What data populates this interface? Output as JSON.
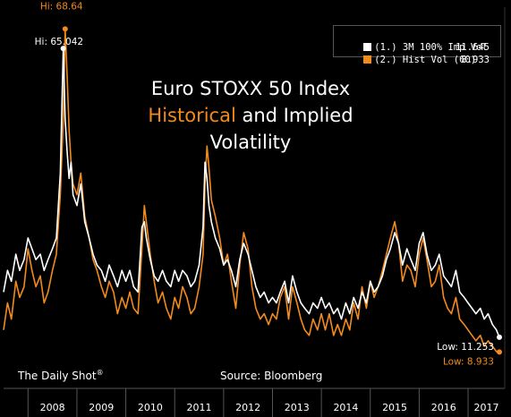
{
  "title": {
    "line1": "Euro STOXX 50 Index",
    "line2_accent": "Historical",
    "line2_rest": " and Implied",
    "line3": "Volatility"
  },
  "legend": {
    "entries": [
      {
        "label": "(1.) 3M 100% Imp Vol",
        "value": "11.645",
        "color": "#ffffff"
      },
      {
        "label": "(2.) Hist Vol (60)",
        "value": "8.933",
        "color": "#f28a1c"
      }
    ]
  },
  "annotations": {
    "hi_hist": "Hi: 68.64",
    "hi_imp": "Hi: 65.042",
    "low_imp": "Low: 11.253",
    "low_hist": "Low: 8.933"
  },
  "footer": {
    "brand": "The Daily Shot",
    "brand_mark": "®",
    "source": "Source: Bloomberg"
  },
  "colors": {
    "background": "#000000",
    "implied": "#ffffff",
    "historical": "#f28a1c",
    "axis": "#555555"
  },
  "chart_data": {
    "type": "line",
    "x_tick_labels": [
      "2008",
      "2009",
      "2010",
      "2011",
      "2012",
      "2013",
      "2014",
      "2015",
      "2016",
      "2017"
    ],
    "xlim": [
      2007.5,
      2017.75
    ],
    "ylim": [
      7,
      72
    ],
    "grid": false,
    "legend_position": "top-right",
    "series": [
      {
        "name": "(1.) 3M 100% Imp Vol",
        "color": "#ffffff",
        "x": [
          2007.5,
          2007.58,
          2007.66,
          2007.75,
          2007.83,
          2007.92,
          2008.0,
          2008.08,
          2008.16,
          2008.25,
          2008.33,
          2008.41,
          2008.5,
          2008.58,
          2008.66,
          2008.72,
          2008.76,
          2008.8,
          2008.84,
          2008.88,
          2008.92,
          2009.0,
          2009.08,
          2009.16,
          2009.25,
          2009.33,
          2009.41,
          2009.5,
          2009.58,
          2009.66,
          2009.75,
          2009.83,
          2009.92,
          2010.0,
          2010.08,
          2010.16,
          2010.25,
          2010.33,
          2010.38,
          2010.42,
          2010.5,
          2010.58,
          2010.66,
          2010.75,
          2010.83,
          2010.92,
          2011.0,
          2011.08,
          2011.16,
          2011.25,
          2011.33,
          2011.41,
          2011.5,
          2011.58,
          2011.62,
          2011.66,
          2011.7,
          2011.75,
          2011.83,
          2011.92,
          2012.0,
          2012.08,
          2012.16,
          2012.25,
          2012.33,
          2012.41,
          2012.5,
          2012.58,
          2012.66,
          2012.75,
          2012.83,
          2012.92,
          2013.0,
          2013.08,
          2013.16,
          2013.25,
          2013.33,
          2013.41,
          2013.5,
          2013.58,
          2013.66,
          2013.75,
          2013.83,
          2013.92,
          2014.0,
          2014.08,
          2014.16,
          2014.25,
          2014.33,
          2014.41,
          2014.5,
          2014.58,
          2014.66,
          2014.75,
          2014.83,
          2014.92,
          2015.0,
          2015.08,
          2015.16,
          2015.25,
          2015.33,
          2015.41,
          2015.5,
          2015.58,
          2015.66,
          2015.75,
          2015.83,
          2015.92,
          2016.0,
          2016.08,
          2016.16,
          2016.25,
          2016.33,
          2016.41,
          2016.5,
          2016.58,
          2016.66,
          2016.75,
          2016.83,
          2016.92,
          2017.0,
          2017.08,
          2017.16,
          2017.25,
          2017.33,
          2017.41,
          2017.5,
          2017.58,
          2017.64
        ],
        "y": [
          20,
          24,
          22,
          27,
          24,
          26,
          30,
          28,
          26,
          27,
          24,
          26,
          28,
          30,
          42,
          65.04,
          52,
          46,
          41,
          44,
          38,
          36,
          40,
          33,
          30,
          27,
          25,
          24,
          22,
          25,
          23,
          21,
          24,
          22,
          24,
          21,
          20,
          32,
          33,
          30,
          26,
          23,
          22,
          24,
          22,
          21,
          24,
          22,
          24,
          23,
          21,
          22,
          25,
          32,
          44,
          41,
          36,
          33,
          30,
          28,
          25,
          26,
          24,
          21,
          26,
          29,
          27,
          24,
          21,
          19,
          20,
          18,
          19,
          18,
          20,
          22,
          18,
          23,
          20,
          18,
          17,
          16,
          18,
          17,
          19,
          17,
          18,
          16,
          17,
          15,
          18,
          16,
          19,
          17,
          20,
          18,
          22,
          20,
          21,
          23,
          26,
          28,
          31,
          29,
          25,
          28,
          26,
          24,
          29,
          31,
          27,
          24,
          25,
          27,
          23,
          22,
          21,
          24,
          20,
          19,
          18,
          17,
          16,
          17,
          15,
          16,
          14,
          13,
          11.65
        ]
      },
      {
        "name": "(2.) Hist Vol (60)",
        "color": "#f28a1c",
        "x": [
          2007.5,
          2007.58,
          2007.66,
          2007.75,
          2007.83,
          2007.92,
          2008.0,
          2008.08,
          2008.16,
          2008.25,
          2008.33,
          2008.41,
          2008.5,
          2008.58,
          2008.66,
          2008.72,
          2008.76,
          2008.8,
          2008.84,
          2008.88,
          2008.92,
          2009.0,
          2009.08,
          2009.16,
          2009.25,
          2009.33,
          2009.41,
          2009.5,
          2009.58,
          2009.66,
          2009.75,
          2009.83,
          2009.92,
          2010.0,
          2010.08,
          2010.16,
          2010.25,
          2010.33,
          2010.38,
          2010.42,
          2010.5,
          2010.58,
          2010.66,
          2010.75,
          2010.83,
          2010.92,
          2011.0,
          2011.08,
          2011.16,
          2011.25,
          2011.33,
          2011.41,
          2011.5,
          2011.58,
          2011.62,
          2011.66,
          2011.7,
          2011.75,
          2011.83,
          2011.92,
          2012.0,
          2012.08,
          2012.16,
          2012.25,
          2012.33,
          2012.41,
          2012.5,
          2012.58,
          2012.66,
          2012.75,
          2012.83,
          2012.92,
          2013.0,
          2013.08,
          2013.16,
          2013.25,
          2013.33,
          2013.41,
          2013.5,
          2013.58,
          2013.66,
          2013.75,
          2013.83,
          2013.92,
          2014.0,
          2014.08,
          2014.16,
          2014.25,
          2014.33,
          2014.41,
          2014.5,
          2014.58,
          2014.66,
          2014.75,
          2014.83,
          2014.92,
          2015.0,
          2015.08,
          2015.16,
          2015.25,
          2015.33,
          2015.41,
          2015.5,
          2015.58,
          2015.66,
          2015.75,
          2015.83,
          2015.92,
          2016.0,
          2016.08,
          2016.16,
          2016.25,
          2016.33,
          2016.41,
          2016.5,
          2016.58,
          2016.66,
          2016.75,
          2016.83,
          2016.92,
          2017.0,
          2017.08,
          2017.16,
          2017.25,
          2017.33,
          2017.41,
          2017.5,
          2017.58,
          2017.64
        ],
        "y": [
          13,
          18,
          15,
          22,
          19,
          21,
          28,
          24,
          21,
          23,
          18,
          20,
          24,
          27,
          38,
          52,
          68.64,
          60,
          50,
          44,
          40,
          38,
          42,
          34,
          30,
          26,
          24,
          21,
          19,
          22,
          20,
          16,
          19,
          17,
          20,
          17,
          16,
          28,
          36,
          33,
          27,
          22,
          18,
          20,
          17,
          15,
          19,
          17,
          21,
          19,
          16,
          17,
          21,
          27,
          40,
          47,
          43,
          37,
          34,
          30,
          25,
          27,
          22,
          17,
          25,
          31,
          28,
          21,
          17,
          15,
          16,
          14,
          16,
          15,
          19,
          21,
          15,
          21,
          18,
          15,
          13,
          12,
          15,
          13,
          16,
          13,
          16,
          12,
          14,
          12,
          15,
          13,
          18,
          15,
          21,
          17,
          22,
          19,
          21,
          24,
          27,
          30,
          33,
          29,
          22,
          25,
          24,
          21,
          27,
          30,
          26,
          21,
          22,
          25,
          19,
          17,
          16,
          19,
          15,
          14,
          13,
          12,
          11,
          12,
          10,
          11,
          10,
          9,
          8.93
        ]
      }
    ]
  }
}
